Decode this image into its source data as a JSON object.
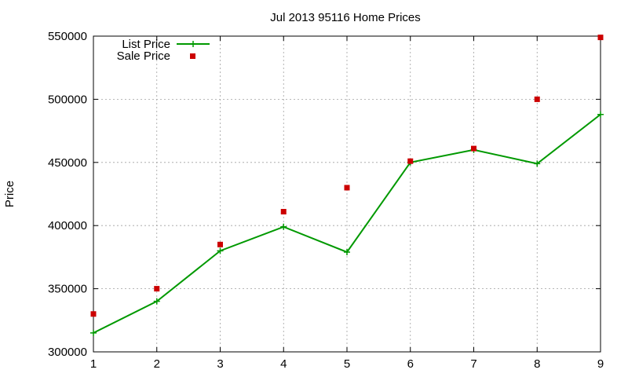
{
  "chart_data": {
    "type": "line",
    "title": "Jul 2013 95116 Home Prices",
    "xlabel": "",
    "ylabel": "Price",
    "x": [
      1,
      2,
      3,
      4,
      5,
      6,
      7,
      8,
      9
    ],
    "xlim": [
      1,
      9
    ],
    "ylim": [
      300000,
      550000
    ],
    "xticks": [
      "1",
      "2",
      "3",
      "4",
      "5",
      "6",
      "7",
      "8",
      "9"
    ],
    "yticks": [
      "300000",
      "350000",
      "400000",
      "450000",
      "500000",
      "550000"
    ],
    "grid": true,
    "legend_position": "top-left",
    "series": [
      {
        "name": "List Price",
        "style": "line-with-plus-markers",
        "color": "#009900",
        "values": [
          315000,
          340000,
          380000,
          399000,
          379000,
          450000,
          460000,
          449000,
          488000
        ]
      },
      {
        "name": "Sale Price",
        "style": "square-markers",
        "color": "#cc0000",
        "values": [
          330000,
          350000,
          385000,
          411000,
          430000,
          451000,
          461000,
          500000,
          549000
        ]
      }
    ]
  }
}
